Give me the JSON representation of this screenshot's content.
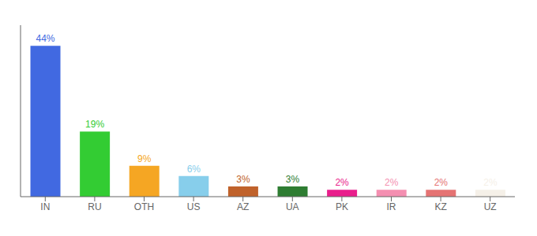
{
  "chart_data": {
    "type": "bar",
    "categories": [
      "IN",
      "RU",
      "OTH",
      "US",
      "AZ",
      "UA",
      "PK",
      "IR",
      "KZ",
      "UZ"
    ],
    "values": [
      44,
      19,
      9,
      6,
      3,
      3,
      2,
      2,
      2,
      2
    ],
    "value_labels": [
      "44%",
      "19%",
      "9%",
      "6%",
      "3%",
      "3%",
      "2%",
      "2%",
      "2%",
      "2%"
    ],
    "colors": [
      "#4169e1",
      "#33cc33",
      "#f5a623",
      "#87ceeb",
      "#c0622b",
      "#2e7d32",
      "#e91e8c",
      "#f48fb1",
      "#e57373",
      "#f5f0e8"
    ],
    "ylim": [
      0,
      50
    ],
    "grid": false,
    "data_labels": true,
    "tick_labels": "x"
  }
}
